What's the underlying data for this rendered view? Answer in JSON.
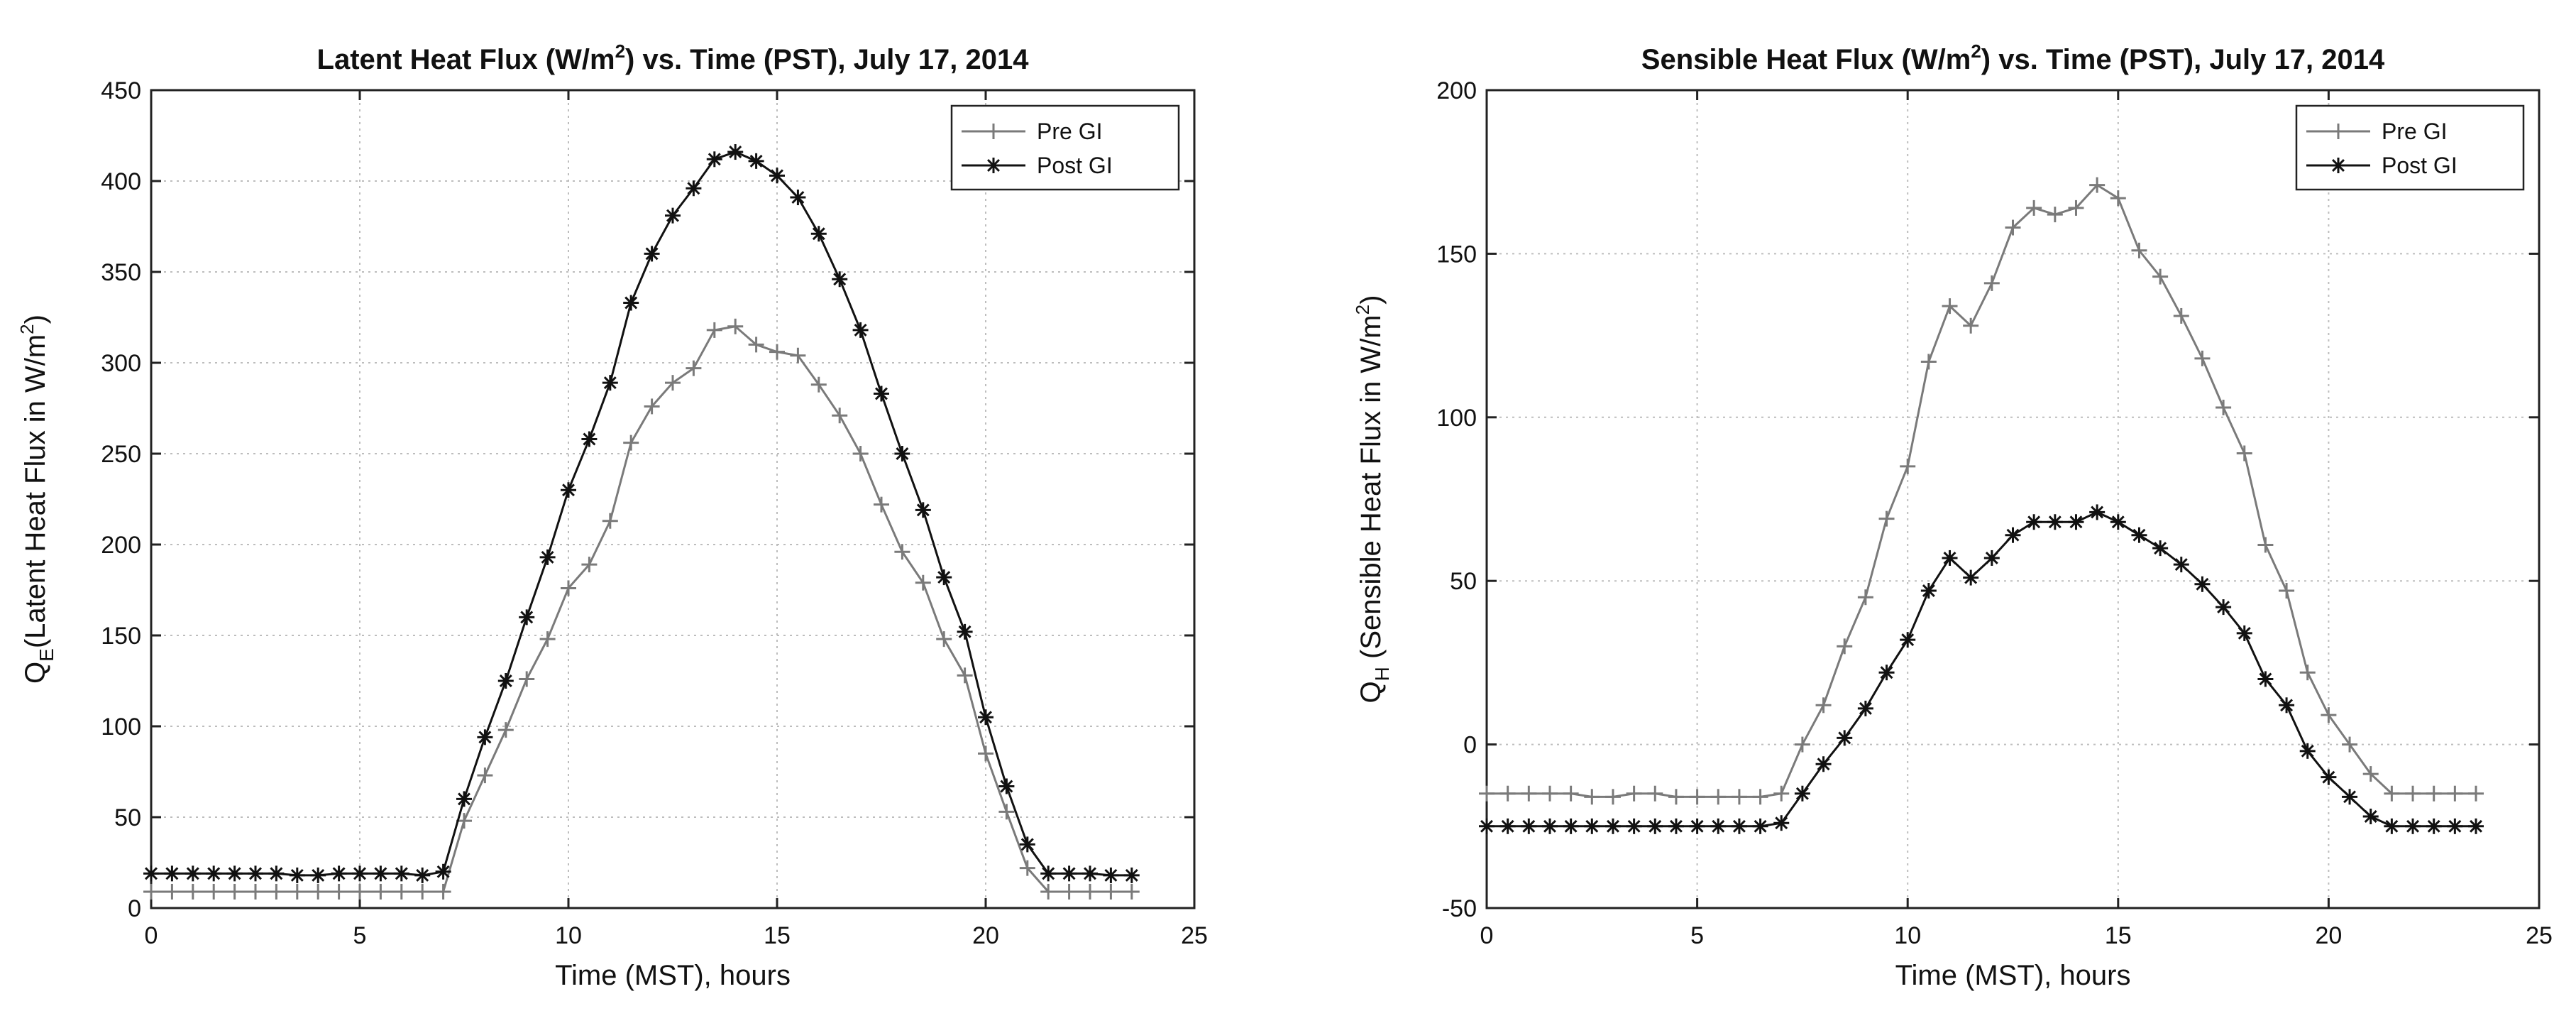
{
  "chart_data": [
    {
      "type": "line",
      "title": "Latent Heat Flux (W/m",
      "title_sup": "2",
      "title_tail": ") vs. Time (PST), July 17, 2014",
      "xlabel": "Time (MST), hours",
      "ylabel_main": "Q",
      "ylabel_sub": "E",
      "ylabel_text": "(Latent Heat Flux in W/m",
      "ylabel_sup": "2",
      "ylabel_tail": ")",
      "xlim": [
        0,
        25
      ],
      "ylim": [
        0,
        450
      ],
      "xticks": [
        0,
        5,
        10,
        15,
        20,
        25
      ],
      "yticks": [
        0,
        50,
        100,
        150,
        200,
        250,
        300,
        350,
        400,
        450
      ],
      "grid": true,
      "legend_position": "top-right",
      "x": [
        0,
        0.5,
        1,
        1.5,
        2,
        2.5,
        3,
        3.5,
        4,
        4.5,
        5,
        5.5,
        6,
        6.5,
        7,
        7.5,
        8,
        8.5,
        9,
        9.5,
        10,
        10.5,
        11,
        11.5,
        12,
        12.5,
        13,
        13.5,
        14,
        14.5,
        15,
        15.5,
        16,
        16.5,
        17,
        17.5,
        18,
        18.5,
        19,
        19.5,
        20,
        20.5,
        21,
        21.5,
        22,
        22.5,
        23,
        23.5
      ],
      "series": [
        {
          "name": "Pre GI",
          "marker": "plus",
          "color": "#7a7a7a",
          "values": [
            9,
            9,
            9,
            9,
            9,
            9,
            9,
            9,
            9,
            9,
            9,
            9,
            9,
            9,
            9,
            48,
            73,
            98,
            126,
            148,
            176,
            189,
            213,
            256,
            276,
            289,
            297,
            318,
            320,
            310,
            306,
            304,
            288,
            271,
            250,
            222,
            196,
            179,
            148,
            128,
            85,
            53,
            22,
            9,
            9,
            9,
            9,
            9
          ]
        },
        {
          "name": "Post GI",
          "marker": "asterisk",
          "color": "#111111",
          "values": [
            19,
            19,
            19,
            19,
            19,
            19,
            19,
            18,
            18,
            19,
            19,
            19,
            19,
            18,
            20,
            60,
            94,
            125,
            160,
            193,
            230,
            258,
            289,
            333,
            360,
            381,
            396,
            412,
            416,
            411,
            403,
            391,
            371,
            346,
            318,
            283,
            250,
            219,
            182,
            152,
            105,
            67,
            35,
            19,
            19,
            19,
            18,
            18
          ]
        }
      ]
    },
    {
      "type": "line",
      "title": "Sensible Heat Flux (W/m",
      "title_sup": "2",
      "title_tail": ") vs. Time (PST), July 17, 2014",
      "xlabel": "Time (MST), hours",
      "ylabel_main": "Q",
      "ylabel_sub": "H",
      "ylabel_text": " (Sensible Heat Flux in W/m",
      "ylabel_sup": "2",
      "ylabel_tail": ")",
      "xlim": [
        0,
        25
      ],
      "ylim": [
        -50,
        200
      ],
      "xticks": [
        0,
        5,
        10,
        15,
        20,
        25
      ],
      "yticks": [
        -50,
        0,
        50,
        100,
        150,
        200
      ],
      "grid": true,
      "legend_position": "top-right",
      "x": [
        0,
        0.5,
        1,
        1.5,
        2,
        2.5,
        3,
        3.5,
        4,
        4.5,
        5,
        5.5,
        6,
        6.5,
        7,
        7.5,
        8,
        8.5,
        9,
        9.5,
        10,
        10.5,
        11,
        11.5,
        12,
        12.5,
        13,
        13.5,
        14,
        14.5,
        15,
        15.5,
        16,
        16.5,
        17,
        17.5,
        18,
        18.5,
        19,
        19.5,
        20,
        20.5,
        21,
        21.5,
        22,
        22.5,
        23,
        23.5
      ],
      "series": [
        {
          "name": "Pre GI",
          "marker": "plus",
          "color": "#7a7a7a",
          "values": [
            -15,
            -15,
            -15,
            -15,
            -15,
            -16,
            -16,
            -15,
            -15,
            -16,
            -16,
            -16,
            -16,
            -16,
            -15,
            0,
            12,
            30,
            45,
            69,
            85,
            117,
            134,
            128,
            141,
            158,
            164,
            162,
            164,
            171,
            167,
            151,
            143,
            131,
            118,
            103,
            89,
            61,
            47,
            22,
            9,
            0,
            -9,
            -15,
            -15,
            -15,
            -15,
            -15
          ]
        },
        {
          "name": "Post GI",
          "marker": "asterisk",
          "color": "#111111",
          "values": [
            -25,
            -25,
            -25,
            -25,
            -25,
            -25,
            -25,
            -25,
            -25,
            -25,
            -25,
            -25,
            -25,
            -25,
            -24,
            -15,
            -6,
            2,
            11,
            22,
            32,
            47,
            57,
            51,
            57,
            64,
            68,
            68,
            68,
            71,
            68,
            64,
            60,
            55,
            49,
            42,
            34,
            20,
            12,
            -2,
            -10,
            -16,
            -22,
            -25,
            -25,
            -25,
            -25,
            -25
          ]
        }
      ]
    }
  ]
}
